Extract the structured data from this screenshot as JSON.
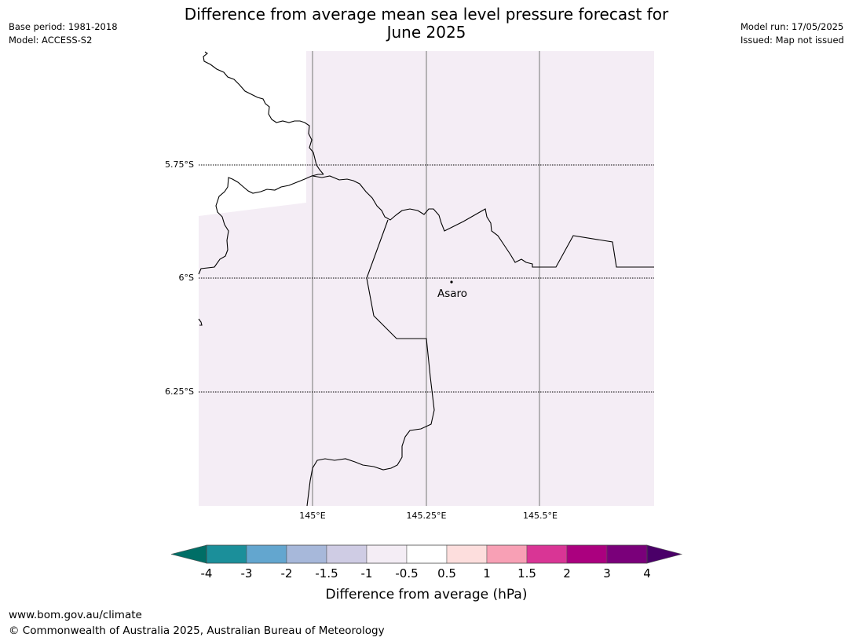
{
  "title_line1": "Difference from average mean sea level pressure forecast for",
  "title_line2": "June 2025",
  "meta_left": {
    "base_period": "Base period: 1981-2018",
    "model": "Model: ACCESS-S2"
  },
  "meta_right": {
    "model_run": "Model run: 17/05/2025",
    "issued": "Issued: Map not issued"
  },
  "map": {
    "fill_color": "#f4edf5",
    "lat_labels": [
      "5.75°S",
      "6°S",
      "6.25°S"
    ],
    "lon_labels": [
      "145°E",
      "145.25°E",
      "145.5°E"
    ],
    "place": {
      "name": "Asaro"
    }
  },
  "colorbar": {
    "label": "Difference from average (hPa)",
    "ticks": [
      "-4",
      "-3",
      "-2",
      "-1.5",
      "-1",
      "-0.5",
      "0.5",
      "1",
      "1.5",
      "2",
      "3",
      "4"
    ],
    "under_color": "#006e66",
    "over_color": "#4a0068",
    "colors": [
      "#1b8f9a",
      "#63a6cf",
      "#a7b8da",
      "#cfcce4",
      "#f4edf5",
      "#ffffff",
      "#fddedd",
      "#f8a0b5",
      "#d93595",
      "#ab007f",
      "#7a007a"
    ]
  },
  "footer": {
    "url": "www.bom.gov.au/climate",
    "copyright": "© Commonwealth of Australia 2025, Australian Bureau of Meteorology"
  }
}
